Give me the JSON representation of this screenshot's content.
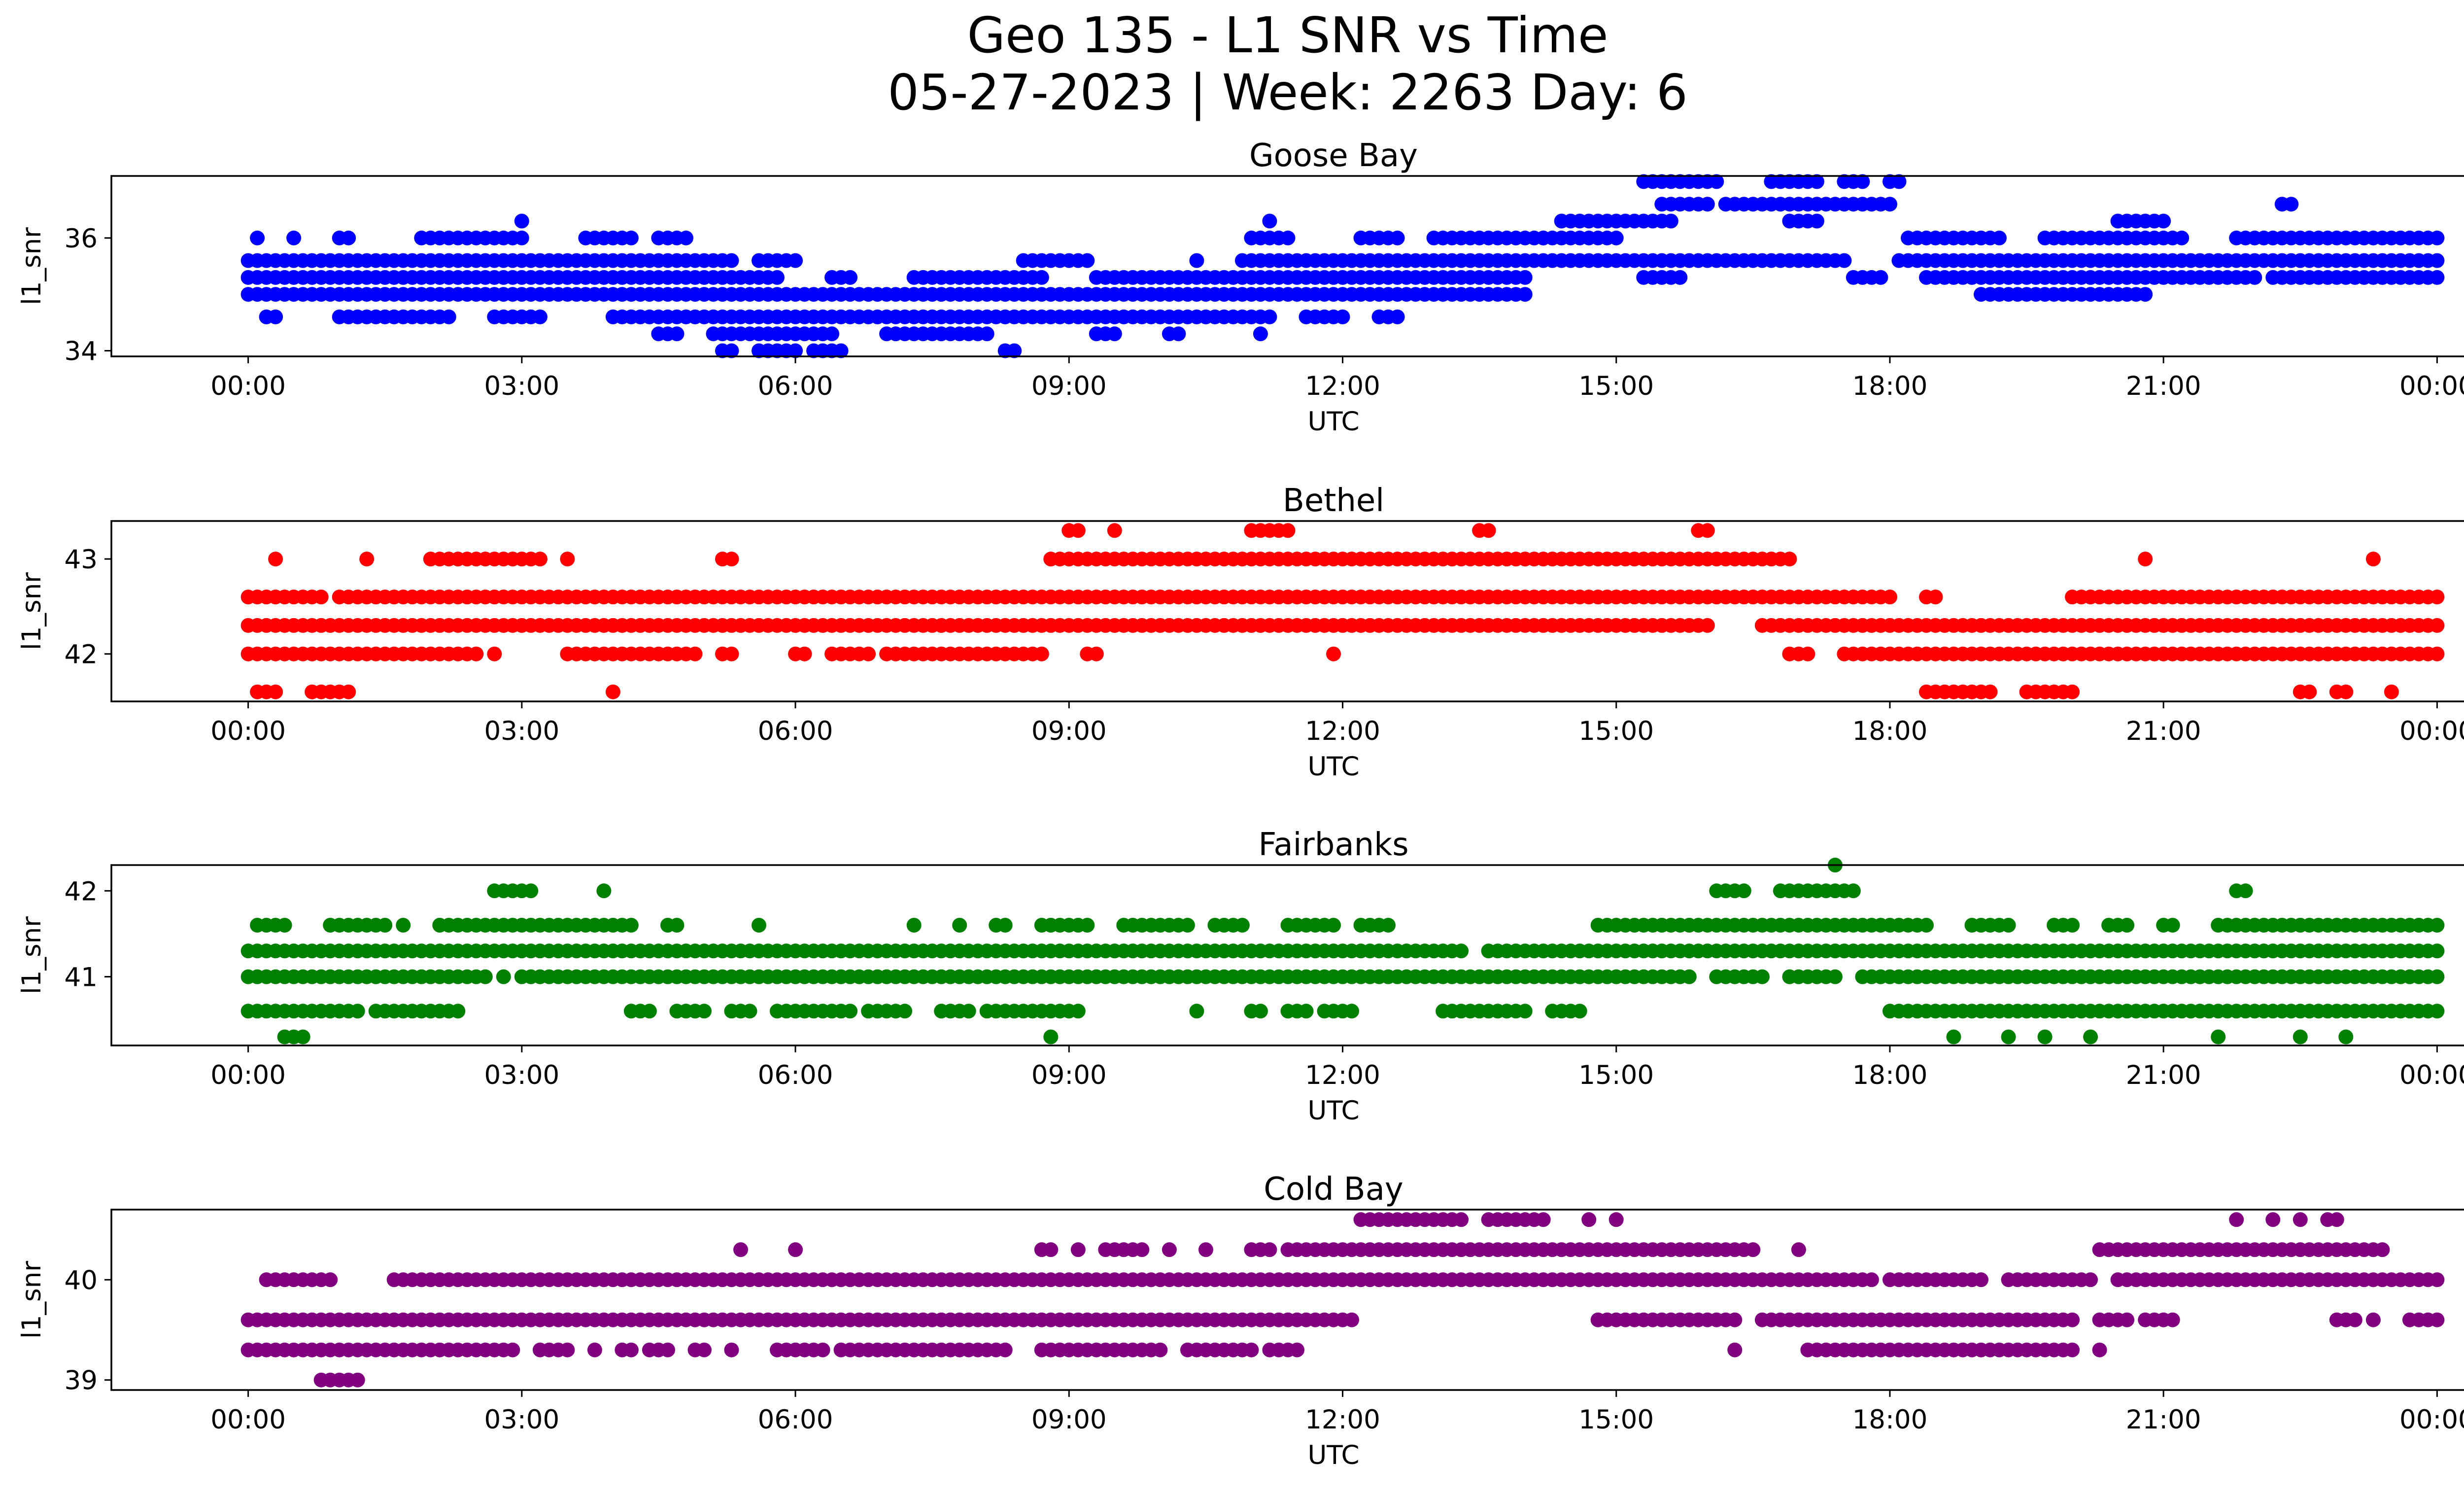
{
  "figure": {
    "title_line1": "Geo 135 - L1 SNR vs Time",
    "title_line2": "05-27-2023 | Week: 2263 Day: 6"
  },
  "chart_data": [
    {
      "type": "scatter",
      "title": "Goose Bay",
      "xlabel": "UTC",
      "ylabel": "l1_snr",
      "color": "#0000ff",
      "xlim": [
        -1.5,
        25.3
      ],
      "ylim": [
        33.9,
        37.1
      ],
      "x_ticks": [
        "00:00",
        "03:00",
        "06:00",
        "09:00",
        "12:00",
        "15:00",
        "18:00",
        "21:00",
        "00:00"
      ],
      "y_ticks": [
        34,
        36
      ],
      "quantization": 0.3,
      "levels": [
        {
          "y": 36.0,
          "segments": [
            [
              0.1,
              0.1
            ],
            [
              0.5,
              0.5
            ],
            [
              1.0,
              1.1
            ],
            [
              1.9,
              3.0
            ],
            [
              3.7,
              4.2
            ],
            [
              4.5,
              4.8
            ],
            [
              11.0,
              11.4
            ],
            [
              12.2,
              12.6
            ],
            [
              13.0,
              14.2
            ],
            [
              14.2,
              15.0
            ],
            [
              18.2,
              19.2
            ],
            [
              19.7,
              21.2
            ],
            [
              21.8,
              24.0
            ]
          ]
        },
        {
          "y": 36.3,
          "segments": [
            [
              3.0,
              3.0
            ],
            [
              11.2,
              11.2
            ],
            [
              14.4,
              15.6
            ],
            [
              16.9,
              17.2
            ],
            [
              20.5,
              21.0
            ]
          ]
        },
        {
          "y": 35.6,
          "segments": [
            [
              0.0,
              5.3
            ],
            [
              5.6,
              6.0
            ],
            [
              8.5,
              9.2
            ],
            [
              10.4,
              10.4
            ],
            [
              10.9,
              14.3
            ],
            [
              14.4,
              17.5
            ],
            [
              18.1,
              24.0
            ]
          ]
        },
        {
          "y": 35.3,
          "segments": [
            [
              0.0,
              5.8
            ],
            [
              6.4,
              6.6
            ],
            [
              7.3,
              8.7
            ],
            [
              9.3,
              14.0
            ],
            [
              15.3,
              15.7
            ],
            [
              17.6,
              17.9
            ],
            [
              18.4,
              22.0
            ],
            [
              22.2,
              24.0
            ]
          ]
        },
        {
          "y": 35.0,
          "segments": [
            [
              0.0,
              14.0
            ],
            [
              19.0,
              20.8
            ]
          ]
        },
        {
          "y": 34.6,
          "segments": [
            [
              0.2,
              0.3
            ],
            [
              1.0,
              2.2
            ],
            [
              2.7,
              3.2
            ],
            [
              4.0,
              11.2
            ],
            [
              11.6,
              12.0
            ],
            [
              12.4,
              12.6
            ]
          ]
        },
        {
          "y": 34.3,
          "segments": [
            [
              4.5,
              4.7
            ],
            [
              5.1,
              6.4
            ],
            [
              7.0,
              8.1
            ],
            [
              9.3,
              9.5
            ],
            [
              10.1,
              10.2
            ],
            [
              11.1,
              11.1
            ]
          ]
        },
        {
          "y": 34.0,
          "segments": [
            [
              5.2,
              5.3
            ],
            [
              5.6,
              6.0
            ],
            [
              6.2,
              6.5
            ],
            [
              8.3,
              8.4
            ]
          ]
        },
        {
          "y": 36.6,
          "segments": [
            [
              15.5,
              16.0
            ],
            [
              16.2,
              18.0
            ],
            [
              22.3,
              22.4
            ]
          ]
        },
        {
          "y": 37.0,
          "segments": [
            [
              15.3,
              16.1
            ],
            [
              16.7,
              17.2
            ],
            [
              17.5,
              17.7
            ],
            [
              18.0,
              18.1
            ]
          ]
        }
      ]
    },
    {
      "type": "scatter",
      "title": "Bethel",
      "xlabel": "UTC",
      "ylabel": "l1_snr",
      "color": "#ff0000",
      "xlim": [
        -1.5,
        25.3
      ],
      "ylim": [
        41.5,
        43.4
      ],
      "x_ticks": [
        "00:00",
        "03:00",
        "06:00",
        "09:00",
        "12:00",
        "15:00",
        "18:00",
        "21:00",
        "00:00"
      ],
      "y_ticks": [
        42,
        43
      ],
      "quantization": 0.2,
      "levels": [
        {
          "y": 43.3,
          "segments": [
            [
              9.0,
              9.1
            ],
            [
              9.5,
              9.5
            ],
            [
              11.0,
              11.4
            ],
            [
              13.5,
              13.6
            ],
            [
              15.9,
              16.0
            ]
          ]
        },
        {
          "y": 43.0,
          "segments": [
            [
              0.3,
              0.3
            ],
            [
              1.3,
              1.3
            ],
            [
              2.0,
              3.2
            ],
            [
              3.5,
              3.5
            ],
            [
              5.2,
              5.3
            ],
            [
              8.8,
              16.9
            ],
            [
              20.8,
              20.8
            ],
            [
              23.3,
              23.3
            ]
          ]
        },
        {
          "y": 42.6,
          "segments": [
            [
              0.0,
              0.8
            ],
            [
              1.0,
              18.0
            ],
            [
              18.4,
              18.5
            ],
            [
              20.0,
              24.0
            ]
          ]
        },
        {
          "y": 42.3,
          "segments": [
            [
              0.0,
              16.0
            ],
            [
              16.6,
              24.0
            ]
          ]
        },
        {
          "y": 42.0,
          "segments": [
            [
              0.0,
              2.5
            ],
            [
              2.7,
              2.7
            ],
            [
              3.5,
              4.9
            ],
            [
              5.2,
              5.3
            ],
            [
              6.0,
              6.1
            ],
            [
              6.4,
              6.8
            ],
            [
              7.0,
              8.7
            ],
            [
              9.2,
              9.3
            ],
            [
              11.9,
              11.9
            ],
            [
              16.9,
              17.1
            ],
            [
              17.5,
              24.0
            ]
          ]
        },
        {
          "y": 41.6,
          "segments": [
            [
              0.1,
              0.3
            ],
            [
              0.7,
              1.1
            ],
            [
              4.0,
              4.0
            ],
            [
              18.4,
              19.1
            ],
            [
              19.5,
              20.0
            ],
            [
              22.5,
              22.6
            ],
            [
              22.9,
              23.0
            ],
            [
              23.5,
              23.5
            ]
          ]
        }
      ]
    },
    {
      "type": "scatter",
      "title": "Fairbanks",
      "xlabel": "UTC",
      "ylabel": "l1_snr",
      "color": "#008000",
      "xlim": [
        -1.5,
        25.3
      ],
      "ylim": [
        40.2,
        42.3
      ],
      "x_ticks": [
        "00:00",
        "03:00",
        "06:00",
        "09:00",
        "12:00",
        "15:00",
        "18:00",
        "21:00",
        "00:00"
      ],
      "y_ticks": [
        41,
        42
      ],
      "quantization": 0.3,
      "levels": [
        {
          "y": 42.3,
          "segments": [
            [
              17.4,
              17.4
            ]
          ]
        },
        {
          "y": 42.0,
          "segments": [
            [
              2.7,
              3.1
            ],
            [
              3.9,
              3.9
            ],
            [
              16.1,
              16.4
            ],
            [
              16.8,
              17.6
            ],
            [
              21.8,
              21.9
            ]
          ]
        },
        {
          "y": 41.6,
          "segments": [
            [
              0.1,
              0.4
            ],
            [
              0.9,
              1.5
            ],
            [
              1.7,
              1.7
            ],
            [
              2.1,
              4.2
            ],
            [
              4.6,
              4.7
            ],
            [
              5.6,
              5.6
            ],
            [
              7.3,
              7.3
            ],
            [
              7.8,
              7.8
            ],
            [
              8.2,
              8.3
            ],
            [
              8.7,
              9.2
            ],
            [
              9.6,
              10.3
            ],
            [
              10.6,
              10.9
            ],
            [
              11.4,
              11.9
            ],
            [
              12.2,
              12.5
            ],
            [
              14.8,
              18.4
            ],
            [
              18.9,
              19.3
            ],
            [
              19.8,
              20.0
            ],
            [
              20.4,
              20.6
            ],
            [
              21.0,
              21.1
            ],
            [
              21.6,
              24.0
            ]
          ]
        },
        {
          "y": 41.3,
          "segments": [
            [
              0.0,
              13.3
            ],
            [
              13.6,
              24.0
            ]
          ]
        },
        {
          "y": 41.0,
          "segments": [
            [
              0.0,
              2.6
            ],
            [
              2.8,
              2.8
            ],
            [
              3.0,
              15.8
            ],
            [
              16.1,
              16.6
            ],
            [
              16.9,
              17.4
            ],
            [
              17.7,
              24.0
            ]
          ]
        },
        {
          "y": 40.6,
          "segments": [
            [
              0.0,
              0.4
            ],
            [
              0.5,
              1.2
            ],
            [
              1.4,
              2.3
            ],
            [
              4.2,
              4.4
            ],
            [
              4.7,
              5.0
            ],
            [
              5.3,
              5.5
            ],
            [
              5.8,
              6.6
            ],
            [
              6.8,
              7.2
            ],
            [
              7.6,
              7.9
            ],
            [
              8.1,
              9.1
            ],
            [
              10.4,
              10.4
            ],
            [
              11.0,
              11.1
            ],
            [
              11.4,
              11.6
            ],
            [
              11.8,
              12.1
            ],
            [
              13.1,
              14.0
            ],
            [
              14.3,
              14.6
            ],
            [
              18.0,
              24.0
            ]
          ]
        },
        {
          "y": 40.3,
          "segments": [
            [
              0.4,
              0.6
            ],
            [
              8.8,
              8.8
            ],
            [
              18.7,
              18.7
            ],
            [
              19.3,
              19.3
            ],
            [
              19.7,
              19.7
            ],
            [
              20.2,
              20.2
            ],
            [
              21.6,
              21.6
            ],
            [
              22.5,
              22.5
            ],
            [
              23.0,
              23.0
            ]
          ]
        }
      ]
    },
    {
      "type": "scatter",
      "title": "Cold Bay",
      "xlabel": "UTC",
      "ylabel": "l1_snr",
      "color": "#800080",
      "xlim": [
        -1.5,
        25.3
      ],
      "ylim": [
        38.9,
        40.7
      ],
      "x_ticks": [
        "00:00",
        "03:00",
        "06:00",
        "09:00",
        "12:00",
        "15:00",
        "18:00",
        "21:00",
        "00:00"
      ],
      "y_ticks": [
        39,
        40
      ],
      "quantization": 0.3,
      "levels": [
        {
          "y": 40.6,
          "segments": [
            [
              12.2,
              13.3
            ],
            [
              13.6,
              14.2
            ],
            [
              14.7,
              14.7
            ],
            [
              15.0,
              15.0
            ],
            [
              21.8,
              21.8
            ],
            [
              22.2,
              22.2
            ],
            [
              22.5,
              22.5
            ],
            [
              22.8,
              22.9
            ]
          ]
        },
        {
          "y": 40.3,
          "segments": [
            [
              5.4,
              5.4
            ],
            [
              6.0,
              6.0
            ],
            [
              8.7,
              8.8
            ],
            [
              9.1,
              9.1
            ],
            [
              9.4,
              9.8
            ],
            [
              10.1,
              10.1
            ],
            [
              10.5,
              10.5
            ],
            [
              11.0,
              11.2
            ],
            [
              11.4,
              16.5
            ],
            [
              17.0,
              17.0
            ],
            [
              20.3,
              23.4
            ]
          ]
        },
        {
          "y": 40.0,
          "segments": [
            [
              0.2,
              0.9
            ],
            [
              1.6,
              17.8
            ],
            [
              18.0,
              19.0
            ],
            [
              19.3,
              20.2
            ],
            [
              20.5,
              24.0
            ]
          ]
        },
        {
          "y": 39.6,
          "segments": [
            [
              0.0,
              12.1
            ],
            [
              14.8,
              16.3
            ],
            [
              16.6,
              20.0
            ],
            [
              20.3,
              20.6
            ],
            [
              20.8,
              21.1
            ],
            [
              22.9,
              23.1
            ],
            [
              23.3,
              23.3
            ],
            [
              23.7,
              24.0
            ]
          ]
        },
        {
          "y": 39.3,
          "segments": [
            [
              0.0,
              2.5
            ],
            [
              2.6,
              2.9
            ],
            [
              3.2,
              3.5
            ],
            [
              3.8,
              3.8
            ],
            [
              4.1,
              4.2
            ],
            [
              4.4,
              4.6
            ],
            [
              4.9,
              5.0
            ],
            [
              5.3,
              5.3
            ],
            [
              5.8,
              6.3
            ],
            [
              6.5,
              6.9
            ],
            [
              7.0,
              8.3
            ],
            [
              8.7,
              10.0
            ],
            [
              10.3,
              11.0
            ],
            [
              11.2,
              11.5
            ],
            [
              16.3,
              16.3
            ],
            [
              17.1,
              20.0
            ],
            [
              20.3,
              20.3
            ]
          ]
        },
        {
          "y": 39.0,
          "segments": [
            [
              0.8,
              1.2
            ]
          ]
        }
      ]
    }
  ]
}
